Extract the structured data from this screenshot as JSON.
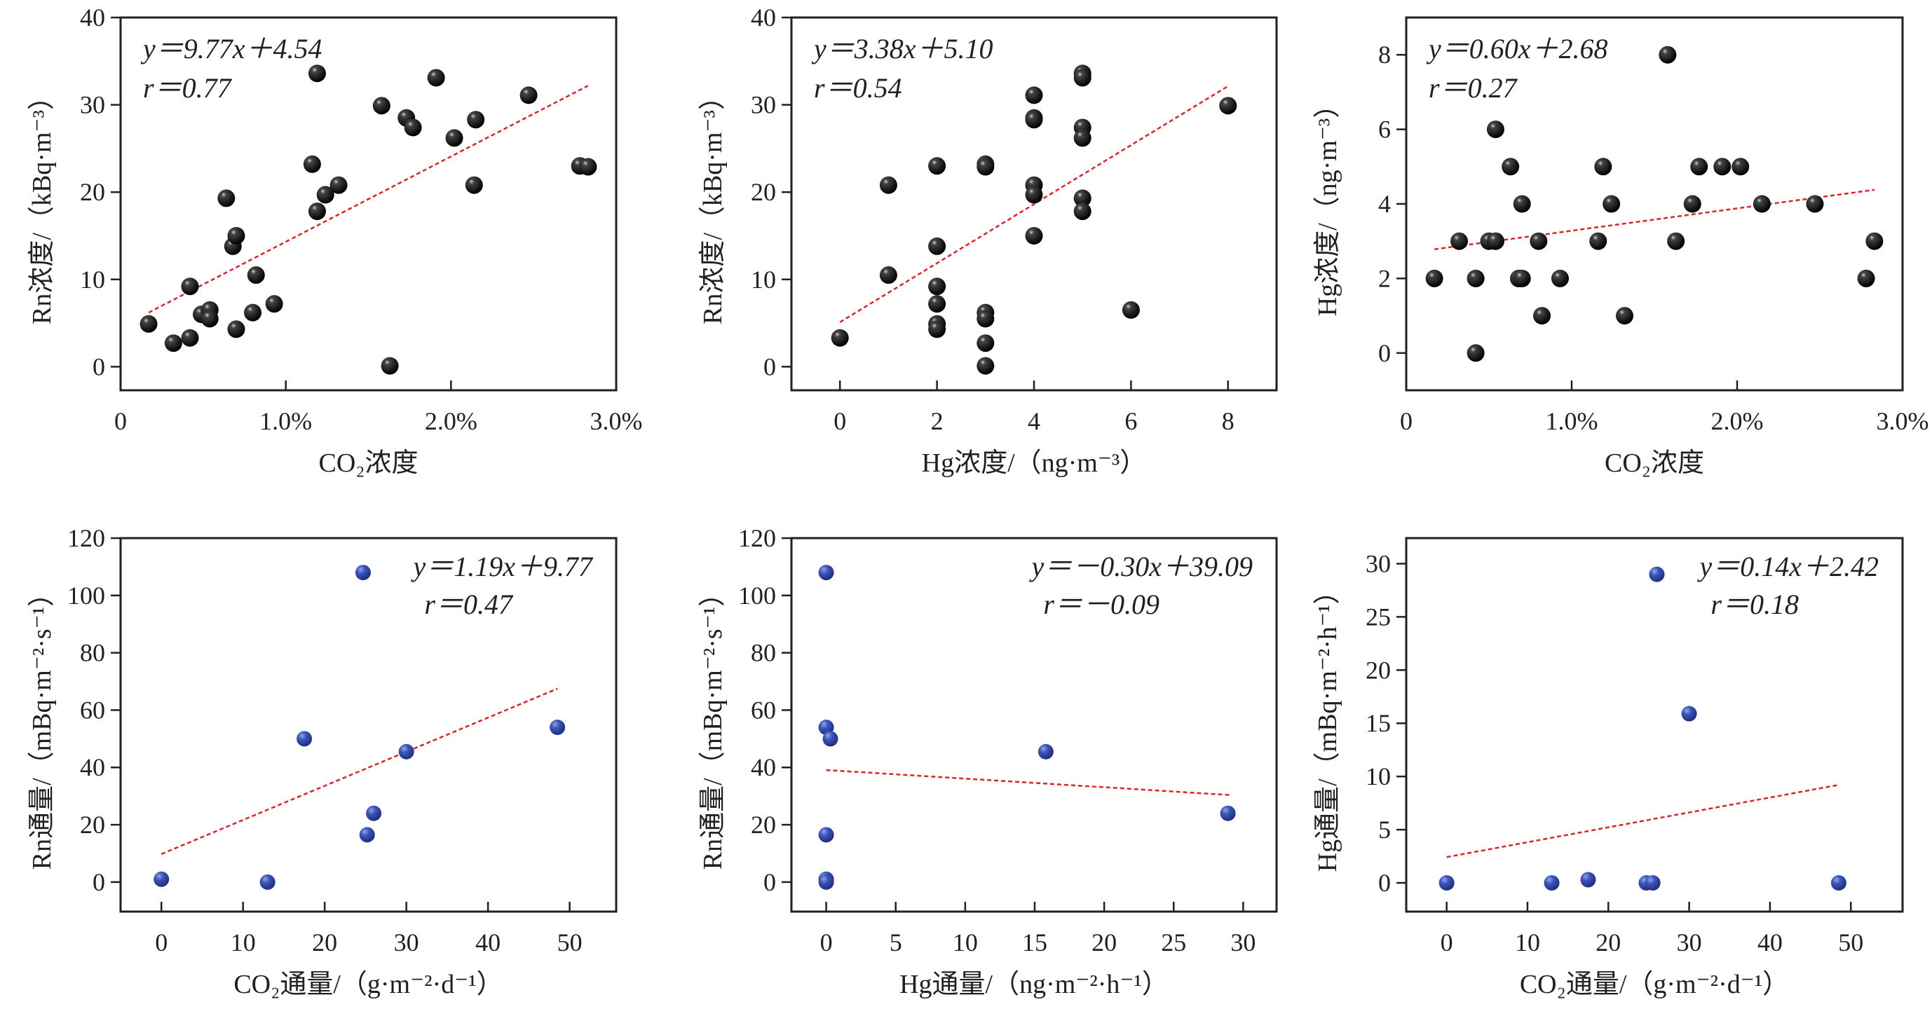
{
  "chart_data": [
    {
      "type": "scatter",
      "id": "co2-vs-rn-conc",
      "xlabel": "CO₂浓度",
      "ylabel": "Rn浓度/（kBq·m⁻³）",
      "equation": "y＝9.77x＋4.54",
      "r_label": "r＝0.77",
      "xlim": [
        0,
        3.0
      ],
      "ylim": [
        -2.7,
        40
      ],
      "xticks": [
        0,
        1,
        2,
        3
      ],
      "xtick_labels": [
        "0",
        "1.0%",
        "2.0%",
        "3.0%"
      ],
      "yticks": [
        0,
        10,
        20,
        30,
        40
      ],
      "ytick_labels": [
        "0",
        "10",
        "20",
        "30",
        "40"
      ],
      "marker": "black-sphere",
      "trend": {
        "slope": 9.77,
        "intercept": 4.54,
        "x_range": [
          0.17,
          2.83
        ]
      },
      "annotation_position": "top-left",
      "points": [
        [
          0.17,
          4.9
        ],
        [
          0.32,
          2.7
        ],
        [
          0.42,
          3.3
        ],
        [
          0.42,
          9.2
        ],
        [
          0.49,
          6.0
        ],
        [
          0.54,
          6.5
        ],
        [
          0.54,
          5.5
        ],
        [
          0.64,
          19.3
        ],
        [
          0.68,
          13.8
        ],
        [
          0.7,
          15.0
        ],
        [
          0.7,
          4.3
        ],
        [
          0.8,
          6.2
        ],
        [
          0.82,
          10.5
        ],
        [
          0.93,
          7.2
        ],
        [
          1.16,
          23.2
        ],
        [
          1.19,
          17.8
        ],
        [
          1.19,
          33.6
        ],
        [
          1.24,
          19.7
        ],
        [
          1.32,
          20.8
        ],
        [
          1.58,
          29.9
        ],
        [
          1.63,
          0.1
        ],
        [
          1.73,
          28.5
        ],
        [
          1.77,
          27.4
        ],
        [
          1.91,
          33.1
        ],
        [
          2.02,
          26.2
        ],
        [
          2.14,
          20.8
        ],
        [
          2.15,
          28.3
        ],
        [
          2.47,
          31.1
        ],
        [
          2.78,
          23.0
        ],
        [
          2.83,
          22.9
        ]
      ]
    },
    {
      "type": "scatter",
      "id": "hg-vs-rn-conc",
      "xlabel": "Hg浓度/（ng·m⁻³）",
      "ylabel": "Rn浓度/（kBq·m⁻³）",
      "equation": "y＝3.38x＋5.10",
      "r_label": "r＝0.54",
      "xlim": [
        -1,
        9
      ],
      "ylim": [
        -2.7,
        40
      ],
      "xticks": [
        0,
        2,
        4,
        6,
        8
      ],
      "xtick_labels": [
        "0",
        "2",
        "4",
        "6",
        "8"
      ],
      "yticks": [
        0,
        10,
        20,
        30,
        40
      ],
      "ytick_labels": [
        "0",
        "10",
        "20",
        "30",
        "40"
      ],
      "marker": "black-sphere",
      "trend": {
        "slope": 3.38,
        "intercept": 5.1,
        "x_range": [
          0,
          8
        ]
      },
      "annotation_position": "top-left",
      "points": [
        [
          0,
          3.3
        ],
        [
          1,
          10.5
        ],
        [
          1,
          20.8
        ],
        [
          2,
          23.0
        ],
        [
          2,
          13.8
        ],
        [
          2,
          9.2
        ],
        [
          2,
          7.2
        ],
        [
          2,
          4.9
        ],
        [
          2,
          4.3
        ],
        [
          3,
          23.2
        ],
        [
          3,
          22.9
        ],
        [
          3,
          6.2
        ],
        [
          3,
          5.5
        ],
        [
          3,
          2.7
        ],
        [
          3,
          0.1
        ],
        [
          4,
          31.1
        ],
        [
          4,
          28.5
        ],
        [
          4,
          28.3
        ],
        [
          4,
          20.8
        ],
        [
          4,
          19.7
        ],
        [
          4,
          15.0
        ],
        [
          5,
          33.6
        ],
        [
          5,
          33.1
        ],
        [
          5,
          27.4
        ],
        [
          5,
          26.2
        ],
        [
          5,
          19.3
        ],
        [
          5,
          17.8
        ],
        [
          6,
          6.5
        ],
        [
          8,
          29.9
        ]
      ]
    },
    {
      "type": "scatter",
      "id": "co2-vs-hg-conc",
      "xlabel": "CO₂浓度",
      "ylabel": "Hg浓度/（ng·m⁻³）",
      "equation": "y＝0.60x＋2.68",
      "r_label": "r＝0.27",
      "xlim": [
        0,
        3.0
      ],
      "ylim": [
        -1,
        9
      ],
      "xticks": [
        0,
        1,
        2,
        3
      ],
      "xtick_labels": [
        "0",
        "1.0%",
        "2.0%",
        "3.0%"
      ],
      "yticks": [
        0,
        2,
        4,
        6,
        8
      ],
      "ytick_labels": [
        "0",
        "2",
        "4",
        "6",
        "8"
      ],
      "marker": "black-sphere",
      "trend": {
        "slope": 0.6,
        "intercept": 2.68,
        "x_range": [
          0.17,
          2.83
        ]
      },
      "annotation_position": "top-left",
      "points": [
        [
          0.17,
          2
        ],
        [
          0.32,
          3
        ],
        [
          0.42,
          2
        ],
        [
          0.42,
          0
        ],
        [
          0.5,
          3
        ],
        [
          0.54,
          3
        ],
        [
          0.54,
          6
        ],
        [
          0.63,
          5
        ],
        [
          0.68,
          2
        ],
        [
          0.7,
          4
        ],
        [
          0.7,
          2
        ],
        [
          0.8,
          3
        ],
        [
          0.82,
          1
        ],
        [
          0.93,
          2
        ],
        [
          1.16,
          3
        ],
        [
          1.19,
          5
        ],
        [
          1.24,
          4
        ],
        [
          1.32,
          1
        ],
        [
          1.58,
          8
        ],
        [
          1.63,
          3
        ],
        [
          1.73,
          4
        ],
        [
          1.77,
          5
        ],
        [
          1.91,
          5
        ],
        [
          2.02,
          5
        ],
        [
          2.15,
          4
        ],
        [
          2.47,
          4
        ],
        [
          2.78,
          2
        ],
        [
          2.83,
          3
        ]
      ]
    },
    {
      "type": "scatter",
      "id": "co2-flux-vs-rn-flux",
      "xlabel": "CO₂通量/（g·m⁻²·d⁻¹）",
      "ylabel": "Rn通量/（mBq·m⁻²·s⁻¹）",
      "equation": "y＝1.19x＋9.77",
      "r_label": "r＝0.47",
      "xlim": [
        -5,
        55.7
      ],
      "ylim": [
        -10.3,
        120
      ],
      "xticks": [
        0,
        10,
        20,
        30,
        40,
        50
      ],
      "xtick_labels": [
        "0",
        "10",
        "20",
        "30",
        "40",
        "50"
      ],
      "yticks": [
        0,
        20,
        40,
        60,
        80,
        100,
        120
      ],
      "ytick_labels": [
        "0",
        "20",
        "40",
        "60",
        "80",
        "100",
        "120"
      ],
      "marker": "blue-sphere",
      "trend": {
        "slope": 1.19,
        "intercept": 9.77,
        "x_range": [
          0,
          48.5
        ]
      },
      "annotation_position": "top-right",
      "points": [
        [
          0,
          1
        ],
        [
          13,
          0
        ],
        [
          17.5,
          50
        ],
        [
          24.7,
          108
        ],
        [
          25.2,
          16.5
        ],
        [
          26,
          24
        ],
        [
          30,
          45.5
        ],
        [
          48.5,
          54
        ]
      ]
    },
    {
      "type": "scatter",
      "id": "hg-flux-vs-rn-flux",
      "xlabel": "Hg通量/（ng·m⁻²·h⁻¹）",
      "ylabel": "Rn通量/（mBq·m⁻²·s⁻¹）",
      "equation": "y＝－0.30x＋39.09",
      "r_label": "r＝－0.09",
      "xlim": [
        -2.5,
        32.4
      ],
      "ylim": [
        -10.3,
        120
      ],
      "xticks": [
        0,
        5,
        10,
        15,
        20,
        25,
        30
      ],
      "xtick_labels": [
        "0",
        "5",
        "10",
        "15",
        "20",
        "25",
        "30"
      ],
      "yticks": [
        0,
        20,
        40,
        60,
        80,
        100,
        120
      ],
      "ytick_labels": [
        "0",
        "20",
        "40",
        "60",
        "80",
        "100",
        "120"
      ],
      "marker": "blue-sphere",
      "trend": {
        "slope": -0.3,
        "intercept": 39.09,
        "x_range": [
          0,
          29
        ]
      },
      "annotation_position": "top-right",
      "points": [
        [
          0,
          108
        ],
        [
          0,
          54
        ],
        [
          0.3,
          50
        ],
        [
          0,
          16.5
        ],
        [
          0,
          1
        ],
        [
          0,
          0
        ],
        [
          15.8,
          45.5
        ],
        [
          28.9,
          24
        ]
      ]
    },
    {
      "type": "scatter",
      "id": "co2-flux-vs-hg-flux",
      "xlabel": "CO₂通量/（g·m⁻²·d⁻¹）",
      "ylabel": "Hg通量/（mBq·m⁻²·h⁻¹）",
      "equation": "y＝0.14x＋2.42",
      "r_label": "r＝0.18",
      "xlim": [
        -5,
        56.4
      ],
      "ylim": [
        -2.7,
        32.4
      ],
      "xticks": [
        0,
        10,
        20,
        30,
        40,
        50
      ],
      "xtick_labels": [
        "0",
        "10",
        "20",
        "30",
        "40",
        "50"
      ],
      "yticks": [
        0,
        5,
        10,
        15,
        20,
        25,
        30
      ],
      "ytick_labels": [
        "0",
        "5",
        "10",
        "15",
        "20",
        "25",
        "30"
      ],
      "marker": "blue-sphere",
      "trend": {
        "slope": 0.14,
        "intercept": 2.42,
        "x_range": [
          0,
          48.5
        ]
      },
      "annotation_position": "top-right",
      "points": [
        [
          0,
          0
        ],
        [
          13,
          0
        ],
        [
          17.5,
          0.3
        ],
        [
          24.7,
          0
        ],
        [
          25.5,
          0
        ],
        [
          26,
          29
        ],
        [
          30,
          15.9
        ],
        [
          48.5,
          0
        ]
      ]
    }
  ],
  "colors": {
    "axis": "#231f20",
    "trend": "#d7262b",
    "black_marker": "#111111",
    "blue_marker": "#3048a8"
  }
}
